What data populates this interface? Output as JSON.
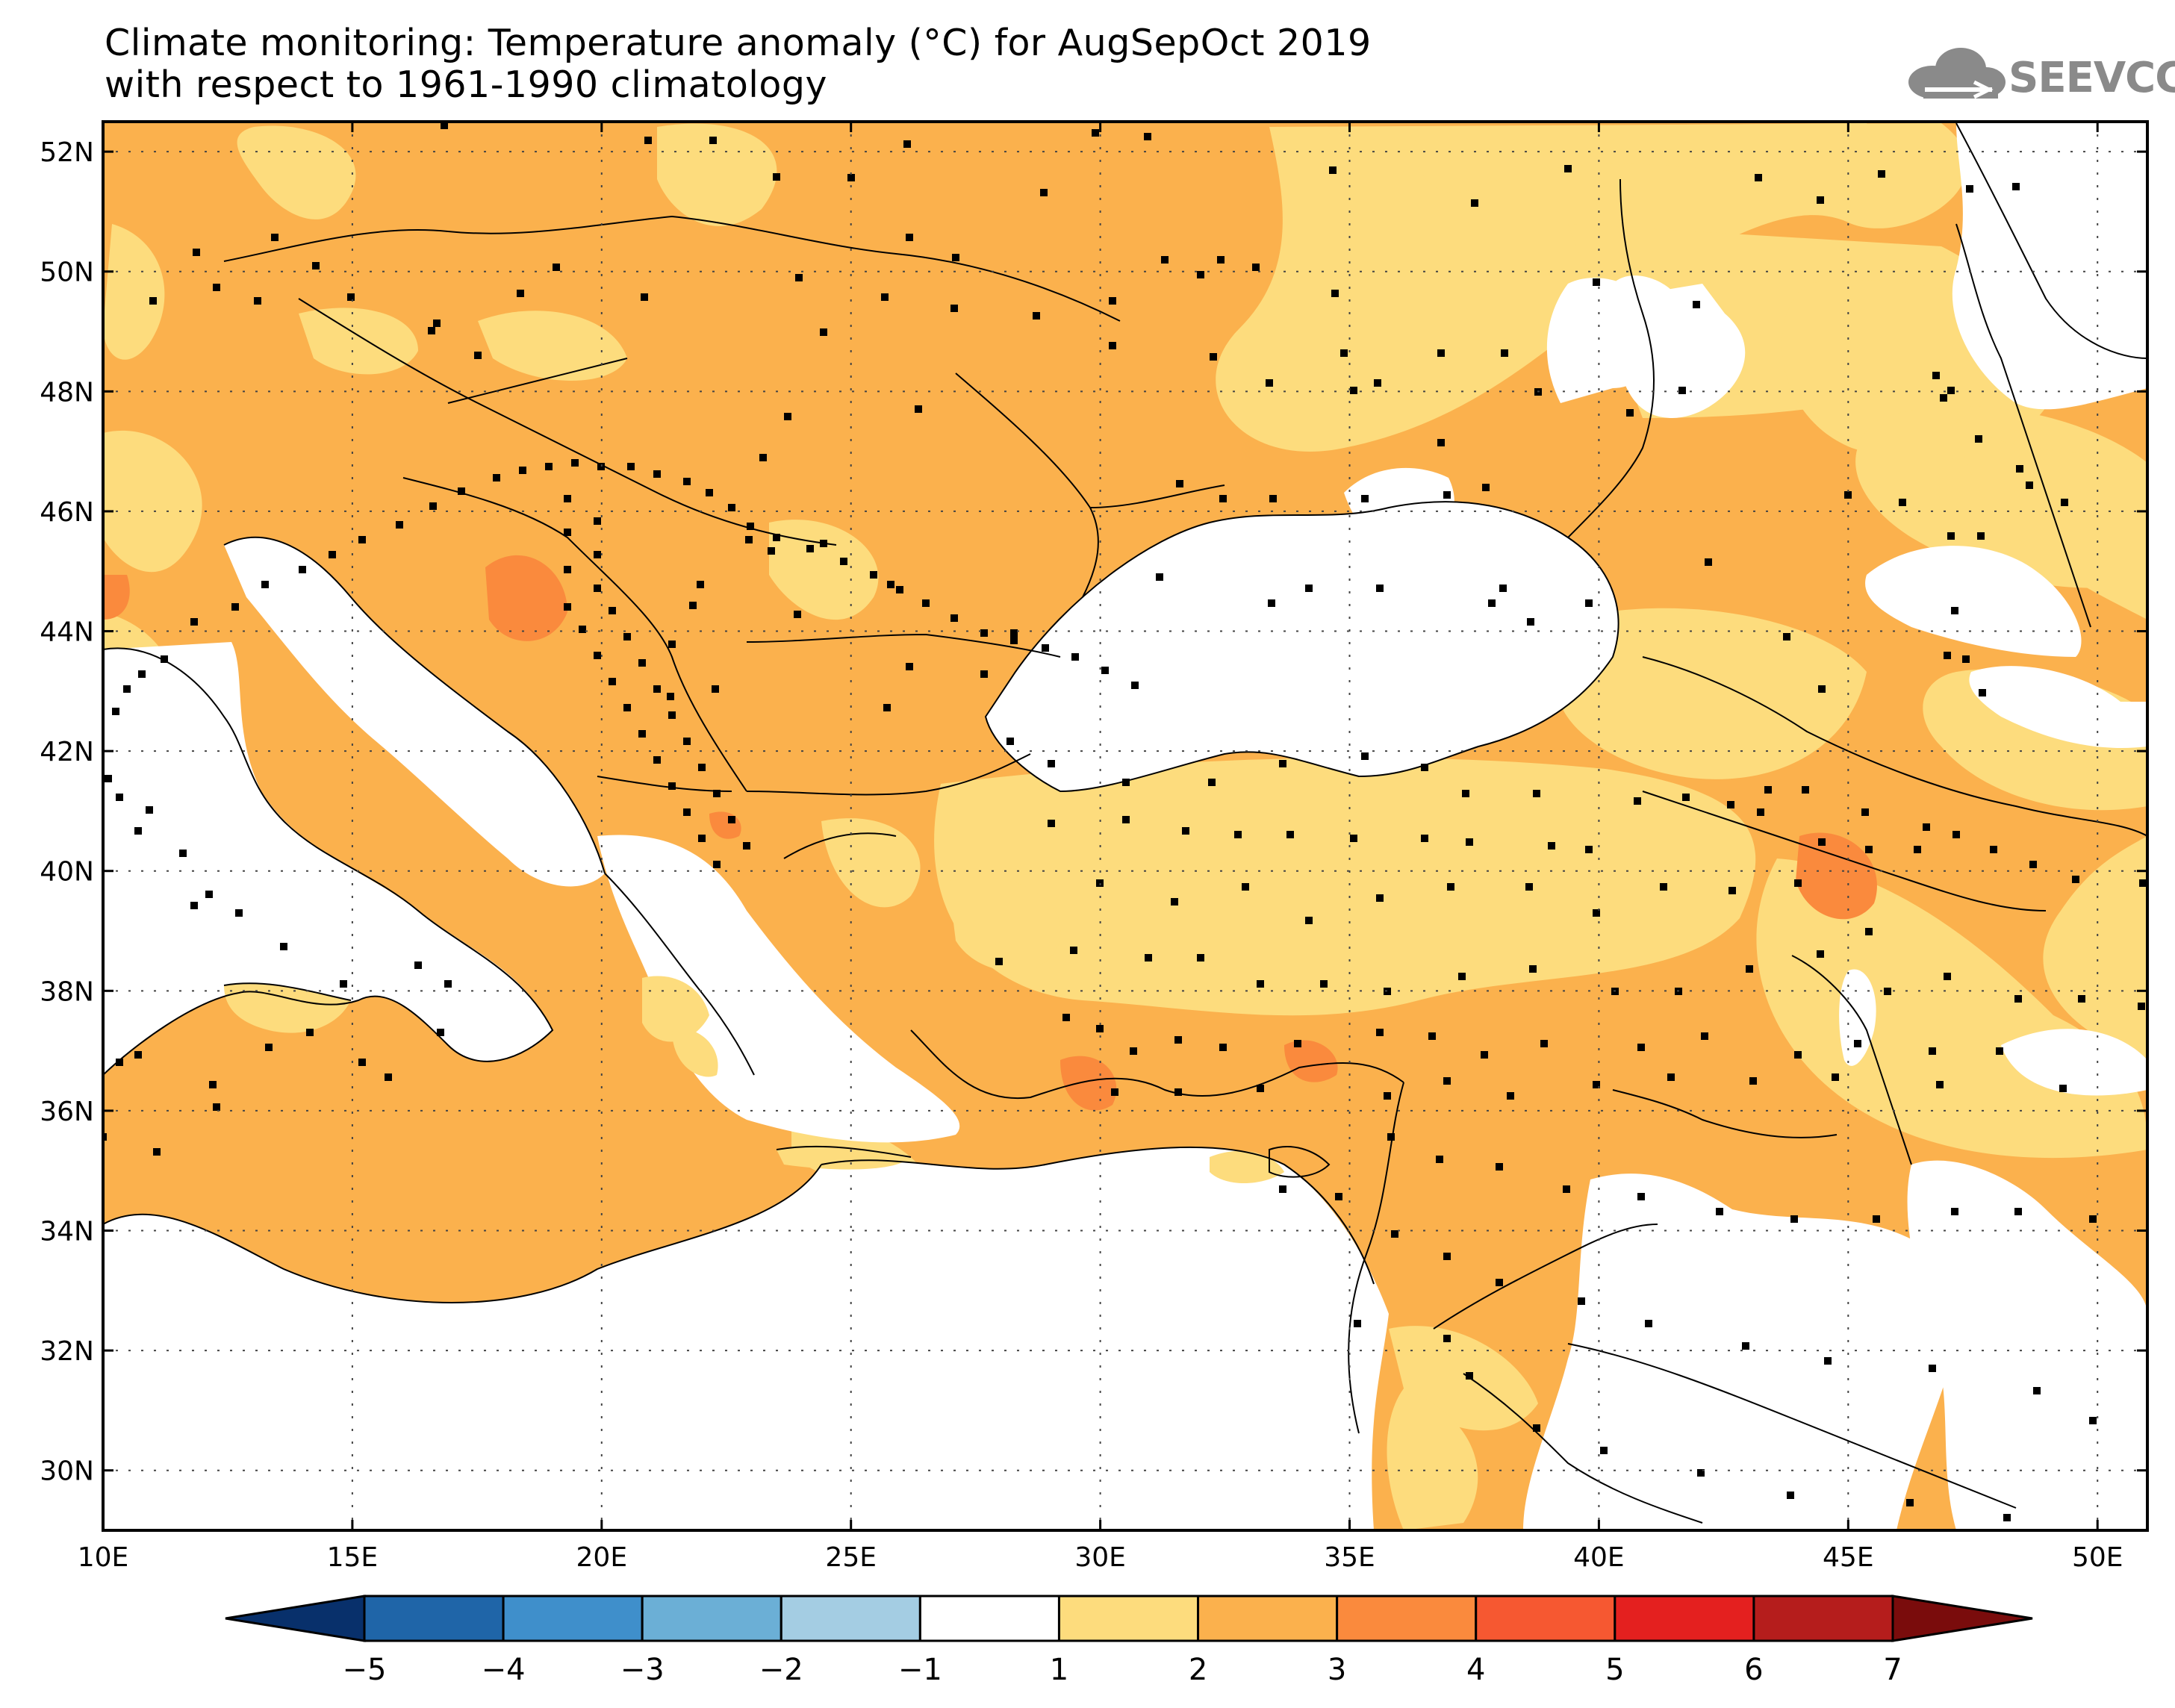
{
  "header": {
    "title_line1": "Climate monitoring: Temperature anomaly (°C) for AugSepOct 2019",
    "title_line2": "with respect to 1961-1990 climatology",
    "logo_text": "SEEVCCC"
  },
  "map": {
    "lon_range": [
      10,
      51
    ],
    "lat_range": [
      29,
      52.5
    ],
    "lon_ticks": [
      "10E",
      "15E",
      "20E",
      "25E",
      "30E",
      "35E",
      "40E",
      "45E",
      "50E"
    ],
    "lat_ticks": [
      "30N",
      "32N",
      "34N",
      "36N",
      "38N",
      "40N",
      "42N",
      "44N",
      "46N",
      "48N",
      "50N",
      "52N"
    ],
    "gridlines": "dotted"
  },
  "colorbar": {
    "labels": [
      "-5",
      "-4",
      "-3",
      "-2",
      "-1",
      "1",
      "2",
      "3",
      "4",
      "5",
      "6",
      "7"
    ],
    "colors": [
      "#08306b",
      "#1f65a8",
      "#3f8fcb",
      "#6bafd6",
      "#a4cde3",
      "#ffffff",
      "#fddc7d",
      "#fbb14d",
      "#fa8a3d",
      "#f65831",
      "#e4201f",
      "#b51d1c",
      "#7a0c0c"
    ]
  },
  "colors": {
    "anomaly_1_2": "#fddc7d",
    "anomaly_2_3": "#fbb14d",
    "anomaly_3_4": "#fa8a3d",
    "station": "#000000",
    "border": "#000000"
  }
}
